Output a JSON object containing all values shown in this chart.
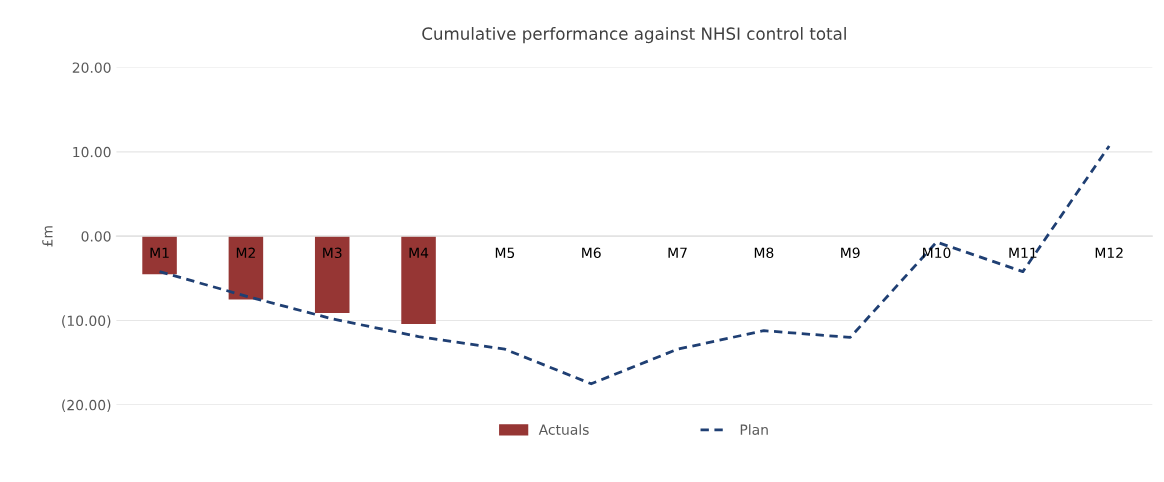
{
  "chart_data": {
    "type": "bar",
    "title": "Cumulative performance against NHSI control total",
    "ylabel": "£m",
    "categories": [
      "M1",
      "M2",
      "M3",
      "M4",
      "M5",
      "M6",
      "M7",
      "M8",
      "M9",
      "M10",
      "M11",
      "M12"
    ],
    "series": [
      {
        "name": "Actuals",
        "color": "#963634",
        "values": [
          -4.5,
          -7.5,
          -9.1,
          -10.4,
          null,
          null,
          null,
          null,
          null,
          null,
          null,
          null
        ]
      },
      {
        "name": "Plan",
        "type": "line",
        "color": "#1f3f73",
        "line_style": "dashed",
        "values": [
          -4.2,
          -7.1,
          -9.8,
          -11.9,
          -13.4,
          -17.5,
          -13.4,
          -11.2,
          -12.0,
          -0.7,
          -4.2,
          10.7
        ]
      }
    ],
    "ylim": [
      -20,
      20
    ],
    "yticks": [
      {
        "value": -20,
        "label": "(20.00)"
      },
      {
        "value": -10,
        "label": "(10.00)"
      },
      {
        "value": 0,
        "label": "0.00"
      },
      {
        "value": 10,
        "label": "10.00"
      },
      {
        "value": 20,
        "label": "20.00"
      }
    ],
    "grid": "y",
    "legend": "bottom"
  }
}
